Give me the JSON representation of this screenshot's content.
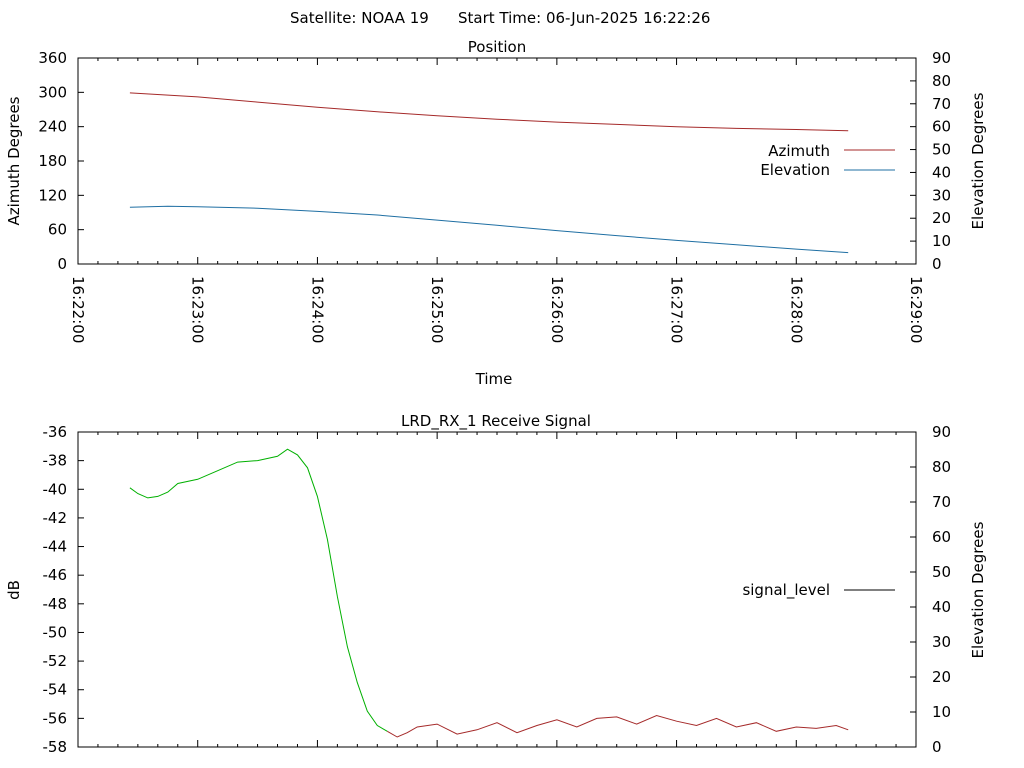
{
  "header": {
    "satellite_label": "Satellite: NOAA 19",
    "start_label": "Start Time: 06-Jun-2025 16:22:26"
  },
  "colors": {
    "azimuth": "#a52a2a",
    "elevation": "#1f6fa3",
    "signal_high": "#00b000",
    "signal_low": "#a52a2a",
    "legend_line": "#000000"
  },
  "chart_data": [
    {
      "type": "line",
      "title": "Position",
      "xlabel": "Time",
      "ylabel": "Azimuth Degrees",
      "y2label": "Elevation Degrees",
      "xlim": [
        "16:22:00",
        "16:29:00"
      ],
      "xticks": [
        "16:22:00",
        "16:23:00",
        "16:24:00",
        "16:25:00",
        "16:26:00",
        "16:27:00",
        "16:28:00",
        "16:29:00"
      ],
      "ylim": [
        0,
        360
      ],
      "yticks": [
        "0",
        "60",
        "120",
        "180",
        "240",
        "300",
        "360"
      ],
      "y2lim": [
        0,
        90
      ],
      "y2ticks": [
        "0",
        "10",
        "20",
        "30",
        "40",
        "50",
        "60",
        "70",
        "80",
        "90"
      ],
      "legend_position": "right",
      "series": [
        {
          "name": "Azimuth",
          "axis": "left",
          "x": [
            "16:22:26",
            "16:23:00",
            "16:23:30",
            "16:24:00",
            "16:24:30",
            "16:25:00",
            "16:25:30",
            "16:26:00",
            "16:26:30",
            "16:27:00",
            "16:27:30",
            "16:28:00",
            "16:28:26"
          ],
          "y": [
            299,
            292,
            283,
            274,
            266,
            259,
            253,
            248,
            244,
            240,
            237,
            235,
            233
          ]
        },
        {
          "name": "Elevation",
          "axis": "right",
          "x": [
            "16:22:26",
            "16:22:45",
            "16:23:00",
            "16:23:30",
            "16:24:00",
            "16:24:30",
            "16:25:00",
            "16:25:30",
            "16:26:00",
            "16:26:30",
            "16:27:00",
            "16:27:30",
            "16:28:00",
            "16:28:26"
          ],
          "y": [
            24.8,
            25.2,
            25.0,
            24.4,
            23.0,
            21.4,
            19.2,
            16.9,
            14.6,
            12.4,
            10.3,
            8.4,
            6.5,
            5.0
          ]
        }
      ]
    },
    {
      "type": "line",
      "title": "LRD_RX_1 Receive Signal",
      "ylabel": "dB",
      "y2label": "Elevation Degrees",
      "xlim": [
        "16:22:00",
        "16:29:00"
      ],
      "ylim": [
        -58,
        -36
      ],
      "yticks": [
        "-58",
        "-56",
        "-54",
        "-52",
        "-50",
        "-48",
        "-46",
        "-44",
        "-42",
        "-40",
        "-38",
        "-36"
      ],
      "y2lim": [
        0,
        90
      ],
      "y2ticks": [
        "0",
        "10",
        "20",
        "30",
        "40",
        "50",
        "60",
        "70",
        "80",
        "90"
      ],
      "legend_position": "right",
      "series": [
        {
          "name": "signal_level",
          "axis": "left",
          "x": [
            "16:22:26",
            "16:22:30",
            "16:22:35",
            "16:22:40",
            "16:22:45",
            "16:22:50",
            "16:23:00",
            "16:23:10",
            "16:23:20",
            "16:23:30",
            "16:23:40",
            "16:23:45",
            "16:23:50",
            "16:23:55",
            "16:24:00",
            "16:24:05",
            "16:24:10",
            "16:24:15",
            "16:24:20",
            "16:24:25",
            "16:24:30",
            "16:24:35",
            "16:24:40",
            "16:24:45",
            "16:24:50",
            "16:25:00",
            "16:25:10",
            "16:25:20",
            "16:25:30",
            "16:25:40",
            "16:25:50",
            "16:26:00",
            "16:26:10",
            "16:26:20",
            "16:26:30",
            "16:26:40",
            "16:26:50",
            "16:27:00",
            "16:27:10",
            "16:27:20",
            "16:27:30",
            "16:27:40",
            "16:27:50",
            "16:28:00",
            "16:28:10",
            "16:28:20",
            "16:28:26"
          ],
          "y": [
            -39.9,
            -40.3,
            -40.6,
            -40.5,
            -40.2,
            -39.6,
            -39.3,
            -38.7,
            -38.1,
            -38.0,
            -37.7,
            -37.2,
            -37.6,
            -38.5,
            -40.5,
            -43.5,
            -47.5,
            -51.0,
            -53.5,
            -55.5,
            -56.5,
            -56.9,
            -57.3,
            -57.0,
            -56.6,
            -56.4,
            -57.1,
            -56.8,
            -56.3,
            -57.0,
            -56.5,
            -56.1,
            -56.6,
            -56.0,
            -55.9,
            -56.4,
            -55.8,
            -56.2,
            -56.5,
            -56.0,
            -56.6,
            -56.3,
            -56.9,
            -56.6,
            -56.7,
            -56.5,
            -56.8
          ]
        }
      ]
    }
  ]
}
